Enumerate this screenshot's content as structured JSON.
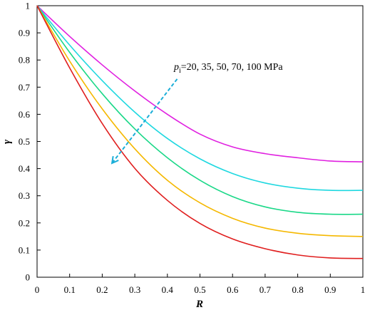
{
  "chart_data": {
    "type": "line",
    "xlabel": "R",
    "ylabel": "γ",
    "xlim": [
      0,
      1
    ],
    "ylim": [
      0,
      1
    ],
    "x_ticks": [
      "0",
      "0.1",
      "0.2",
      "0.3",
      "0.4",
      "0.5",
      "0.6",
      "0.7",
      "0.8",
      "0.9",
      "1"
    ],
    "y_ticks": [
      "0",
      "0.1",
      "0.2",
      "0.3",
      "0.4",
      "0.5",
      "0.6",
      "0.7",
      "0.8",
      "0.9",
      "1"
    ],
    "grid": false,
    "annotation": {
      "symbol": "p",
      "subscript": "i",
      "text": "=20, 35, 50, 70, 100 MPa",
      "arrow_from": [
        0.43,
        0.73
      ],
      "arrow_to": [
        0.23,
        0.42
      ],
      "arrow_color": "#1AAED8"
    },
    "x": [
      0,
      0.1,
      0.2,
      0.3,
      0.4,
      0.5,
      0.6,
      0.7,
      0.8,
      0.9,
      1.0
    ],
    "series": [
      {
        "color": "#E020E0",
        "values": [
          1.0,
          0.887,
          0.782,
          0.686,
          0.6,
          0.527,
          0.48,
          0.455,
          0.44,
          0.428,
          0.425
        ]
      },
      {
        "color": "#1FD8E0",
        "values": [
          1.0,
          0.855,
          0.724,
          0.608,
          0.511,
          0.436,
          0.382,
          0.347,
          0.328,
          0.32,
          0.32
        ]
      },
      {
        "color": "#1AD888",
        "values": [
          1.0,
          0.828,
          0.676,
          0.546,
          0.44,
          0.357,
          0.297,
          0.259,
          0.239,
          0.232,
          0.232
        ]
      },
      {
        "color": "#F5B800",
        "values": [
          1.0,
          0.796,
          0.62,
          0.473,
          0.357,
          0.274,
          0.217,
          0.181,
          0.162,
          0.153,
          0.15
        ]
      },
      {
        "color": "#E01E1E",
        "values": [
          1.0,
          0.771,
          0.566,
          0.401,
          0.283,
          0.198,
          0.141,
          0.105,
          0.082,
          0.071,
          0.069
        ]
      }
    ]
  }
}
